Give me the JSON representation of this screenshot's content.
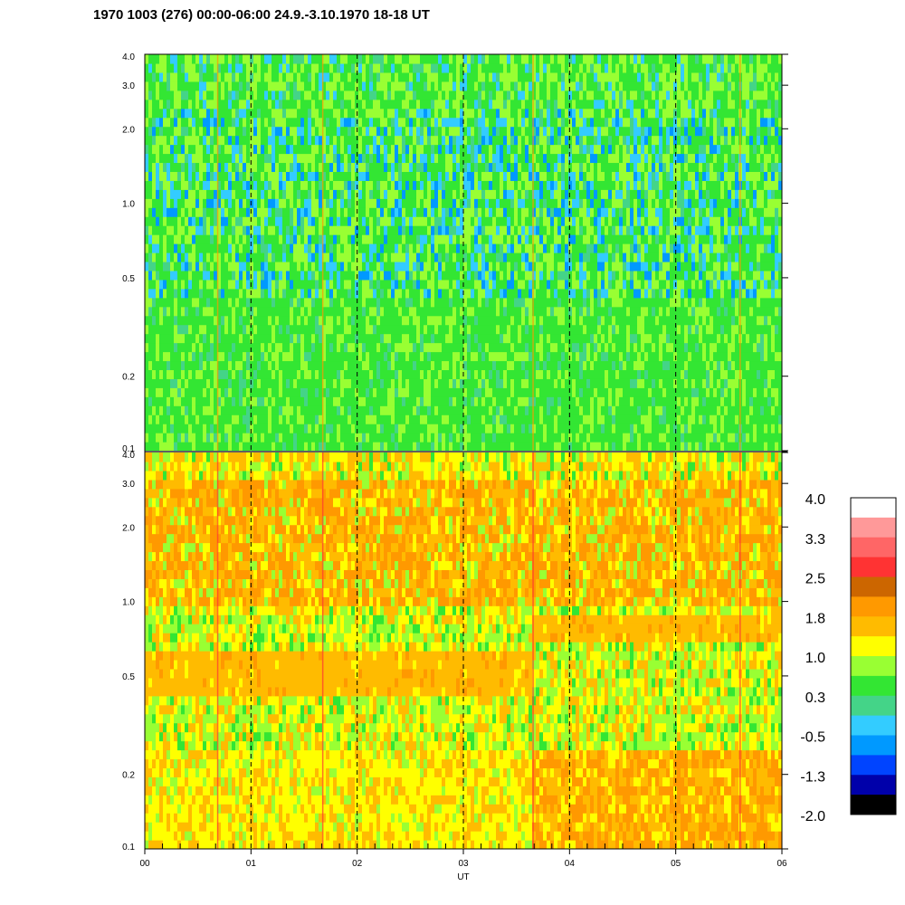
{
  "title": "1970 1003 (276) 00:00-06:00 24.9.-3.10.1970  18-18 UT",
  "chart_data": [
    {
      "type": "heatmap",
      "panel": "upper",
      "x_range": [
        0,
        6
      ],
      "y_range": [
        0.1,
        4.0
      ],
      "y_scale": "log",
      "y_ticks": [
        "0.1",
        "0.2",
        "0.5",
        "1.0",
        "2.0",
        "3.0",
        "4.0"
      ],
      "vertical_dashed_lines_at": [
        1,
        2,
        3,
        4,
        5
      ],
      "dominant_colors": [
        "#33e633",
        "#99ff33",
        "#44d488",
        "#33ccff",
        "#0099ff"
      ],
      "description_values": "mostly values near 0.3 to 1.0 with lower values (~ -0.5) around 0.5-2.0"
    },
    {
      "type": "heatmap",
      "panel": "lower",
      "x_range": [
        0,
        6
      ],
      "y_range": [
        0.1,
        4.0
      ],
      "y_scale": "log",
      "y_ticks": [
        "0.1",
        "0.2",
        "0.5",
        "1.0",
        "2.0",
        "3.0",
        "4.0"
      ],
      "vertical_dashed_lines_at": [
        1,
        2,
        3,
        4,
        5
      ],
      "band": {
        "segments": [
          {
            "x_start": 0.0,
            "x_end": 3.65,
            "y_low": 0.42,
            "y_high": 0.62
          },
          {
            "x_start": 3.65,
            "x_end": 6.0,
            "y_low": 0.7,
            "y_high": 0.88
          }
        ]
      }
    }
  ],
  "x_axis": {
    "label": "UT",
    "ticks": [
      "00",
      "01",
      "02",
      "03",
      "04",
      "05",
      "06"
    ]
  },
  "colorbar": {
    "tick_labels": [
      "4.0",
      "3.3",
      "2.5",
      "1.8",
      "1.0",
      "0.3",
      "-0.5",
      "-1.3",
      "-2.0"
    ],
    "colors": [
      "#ffffff",
      "#ff9999",
      "#ff6666",
      "#ff3333",
      "#cc6600",
      "#ff9900",
      "#ffbb00",
      "#ffff00",
      "#99ff33",
      "#33e633",
      "#44d488",
      "#33ccff",
      "#0099ff",
      "#0044ff",
      "#0000aa",
      "#000000"
    ]
  }
}
